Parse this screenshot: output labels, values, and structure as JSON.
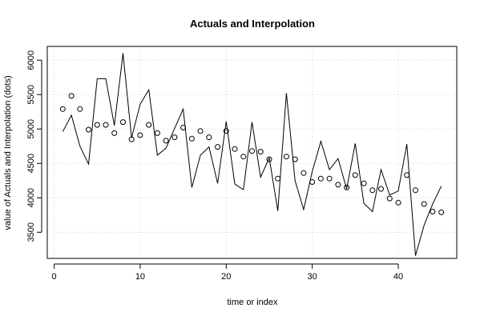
{
  "chart_data": {
    "type": "line",
    "title": "Actuals and Interpolation",
    "xlabel": "time or index",
    "ylabel": "value of Actuals and Interpolation (dots)",
    "xlim": [
      -0.8,
      46.8
    ],
    "ylim": [
      3120,
      6200
    ],
    "x_ticks": [
      0,
      10,
      20,
      30,
      40
    ],
    "y_ticks": [
      3500,
      4000,
      4500,
      5000,
      5500,
      6000
    ],
    "grid": true,
    "series": [
      {
        "kind": "line",
        "x": [
          1,
          2,
          3,
          4,
          5,
          6,
          7,
          8,
          9,
          10,
          11,
          12,
          13,
          14,
          15,
          16,
          17,
          18,
          19,
          20,
          21,
          22,
          23,
          24,
          25,
          26,
          27,
          28,
          29,
          30,
          31,
          32,
          33,
          34,
          35,
          36,
          37,
          38,
          39,
          40,
          41,
          42,
          43,
          44,
          45
        ],
        "values": [
          4960,
          5200,
          4750,
          4490,
          5730,
          5730,
          5050,
          6100,
          4870,
          5360,
          5570,
          4620,
          4720,
          5010,
          5290,
          4150,
          4620,
          4740,
          4210,
          5110,
          4200,
          4120,
          5100,
          4300,
          4580,
          3810,
          5520,
          4250,
          3830,
          4380,
          4820,
          4410,
          4570,
          4130,
          4790,
          3920,
          3800,
          4410,
          4040,
          4100,
          4780,
          3160,
          3600,
          3910,
          4170
        ]
      },
      {
        "kind": "dots",
        "x": [
          1,
          2,
          3,
          4,
          5,
          6,
          7,
          8,
          9,
          10,
          11,
          12,
          13,
          14,
          15,
          16,
          17,
          18,
          19,
          20,
          21,
          22,
          23,
          24,
          25,
          26,
          27,
          28,
          29,
          30,
          31,
          32,
          33,
          34,
          35,
          36,
          37,
          38,
          39,
          40,
          41,
          42,
          43,
          44,
          45
        ],
        "values": [
          5290,
          5480,
          5290,
          4990,
          5060,
          5060,
          4940,
          5100,
          4850,
          4910,
          5060,
          4940,
          4830,
          4880,
          5020,
          4860,
          4970,
          4880,
          4740,
          4970,
          4710,
          4600,
          4680,
          4670,
          4560,
          4280,
          4600,
          4560,
          4360,
          4230,
          4280,
          4280,
          4190,
          4150,
          4330,
          4210,
          4110,
          4130,
          3990,
          3930,
          4330,
          4110,
          3910,
          3800,
          3790
        ]
      }
    ]
  }
}
